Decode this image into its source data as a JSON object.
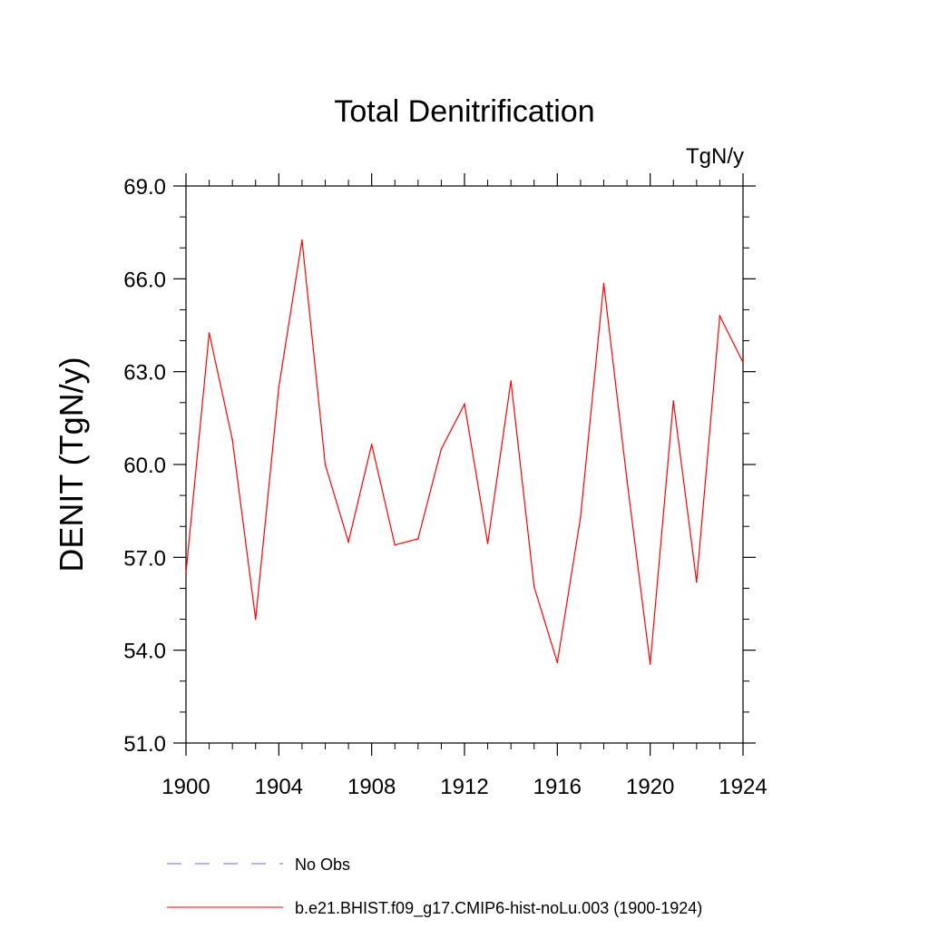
{
  "chart_data": {
    "type": "line",
    "title": "Total Denitrification",
    "units_label": "TgN/y",
    "xlabel": "",
    "ylabel": "DENIT  (TgN/y)",
    "xlim": [
      1900,
      1924
    ],
    "ylim": [
      51.0,
      69.0
    ],
    "x_ticks": [
      1900,
      1904,
      1908,
      1912,
      1916,
      1920,
      1924
    ],
    "x_tick_labels": [
      "1900",
      "1904",
      "1908",
      "1912",
      "1916",
      "1920",
      "1924"
    ],
    "y_ticks": [
      51.0,
      54.0,
      57.0,
      60.0,
      63.0,
      66.0,
      69.0
    ],
    "y_tick_labels": [
      "51.0",
      "54.0",
      "57.0",
      "60.0",
      "63.0",
      "66.0",
      "69.0"
    ],
    "grid": false,
    "legend_position": "bottom",
    "series": [
      {
        "name": "b.e21.BHIST.f09_g17.CMIP6-hist-noLu.003 (1900-1924)",
        "color": "#ff0000",
        "style": "solid",
        "x": [
          1900,
          1901,
          1902,
          1903,
          1904,
          1905,
          1906,
          1907,
          1908,
          1909,
          1910,
          1911,
          1912,
          1913,
          1914,
          1915,
          1916,
          1917,
          1918,
          1919,
          1920,
          1921,
          1922,
          1923,
          1924
        ],
        "values": [
          56.5,
          64.25,
          60.8,
          55.0,
          62.5,
          67.25,
          60.0,
          57.5,
          60.65,
          57.4,
          57.6,
          60.5,
          61.95,
          57.45,
          62.7,
          56.05,
          53.6,
          58.3,
          65.85,
          59.5,
          53.55,
          62.05,
          56.2,
          64.8,
          63.3
        ]
      }
    ],
    "legend": [
      {
        "label": "No Obs",
        "color": "#6b6bd6",
        "style": "dashed"
      },
      {
        "label": "b.e21.BHIST.f09_g17.CMIP6-hist-noLu.003 (1900-1924)",
        "color": "#ff0000",
        "style": "solid"
      }
    ]
  }
}
